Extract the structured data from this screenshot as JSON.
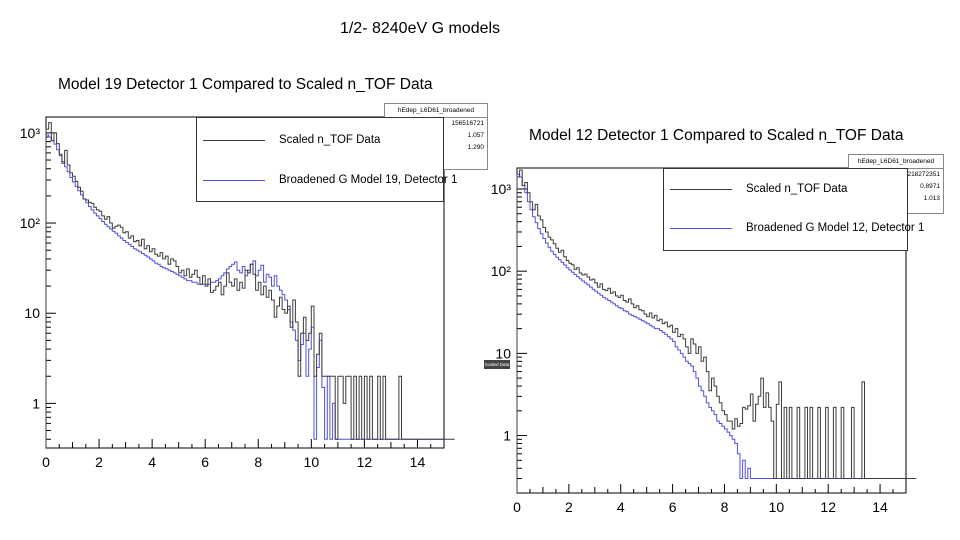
{
  "slide_title": "1/2- 8240eV G models",
  "side_tag": "Scaled Data",
  "chart_data": [
    {
      "type": "line",
      "subtype": "step-histogram",
      "title": "Model 19 Detector 1 Compared to Scaled n_TOF Data",
      "xlabel": "",
      "ylabel": "",
      "xlim": [
        0,
        15
      ],
      "yscale": "log",
      "ylim": [
        0.32,
        1500
      ],
      "x_ticks": [
        "0",
        "2",
        "4",
        "6",
        "8",
        "10",
        "12",
        "14"
      ],
      "y_ticks": [
        "1",
        "10",
        "10²",
        "10³"
      ],
      "stats": {
        "name": "hEdep_L6D61_broadened",
        "entries": "156516721",
        "mean": "1.057",
        "std_dev": "1.290"
      },
      "legend": [
        "Scaled n_TOF Data",
        "Broadened G Model 19, Detector 1"
      ],
      "colors": {
        "data": "#3c3c3c",
        "model": "#5050e0"
      },
      "series": [
        {
          "name": "Scaled n_TOF Data",
          "bin_width": 0.1,
          "values": [
            1100,
            1300,
            820,
            1000,
            760,
            580,
            460,
            640,
            440,
            360,
            330,
            290,
            250,
            225,
            185,
            180,
            170,
            165,
            150,
            140,
            135,
            120,
            110,
            118,
            100,
            88,
            92,
            95,
            90,
            78,
            80,
            68,
            72,
            62,
            64,
            56,
            66,
            52,
            56,
            48,
            52,
            45,
            43,
            47,
            40,
            43,
            35,
            40,
            38,
            33,
            28,
            30,
            26,
            31,
            25,
            27,
            30,
            25,
            21,
            26,
            20,
            24,
            17,
            18,
            20,
            22,
            16,
            20,
            28,
            22,
            20,
            24,
            18,
            22,
            19,
            30,
            28,
            35,
            27,
            18,
            22,
            16,
            20,
            15,
            18,
            14,
            9,
            12,
            15,
            11,
            10,
            12,
            7,
            14,
            8,
            2,
            6,
            9,
            5,
            6,
            12,
            2,
            3.5,
            6,
            2,
            2,
            2,
            2,
            2,
            0.4,
            2,
            2,
            1,
            2,
            2,
            0.4,
            2,
            0.4,
            2,
            0.4,
            2,
            0.4,
            2,
            0.4,
            0.4,
            2,
            0.4,
            2,
            0.4,
            0.4,
            0.4,
            0.4,
            0.4,
            2,
            0.4,
            0.4,
            0.4,
            0.4,
            0.4,
            0.4,
            0.4,
            0.4,
            0.4,
            0.4,
            0.4,
            0.4,
            0.4,
            0.4,
            0.4,
            0.4,
            0.4,
            0.4,
            0.4,
            0.4
          ]
        },
        {
          "name": "Broadened G Model 19, Detector 1",
          "bin_width": 0.1,
          "values": [
            950,
            900,
            820,
            750,
            650,
            560,
            480,
            420,
            370,
            320,
            285,
            255,
            228,
            205,
            185,
            168,
            152,
            140,
            129,
            120,
            112,
            104,
            97,
            91,
            86,
            81,
            77,
            72,
            68,
            64,
            61,
            58,
            55,
            52,
            50,
            48,
            46,
            44,
            42,
            40,
            38,
            36,
            35,
            33,
            32,
            31,
            30,
            29,
            28,
            27,
            26,
            25,
            24,
            23,
            23,
            22,
            22,
            21,
            21,
            21,
            21,
            21,
            22,
            22,
            23,
            24,
            26,
            28,
            31,
            33,
            35,
            37,
            30,
            28,
            33,
            26,
            30,
            35,
            38,
            26,
            30,
            34,
            22,
            27,
            25,
            20,
            26,
            20,
            18,
            16,
            14,
            11,
            8,
            6.5,
            5,
            3,
            4.5,
            6,
            2,
            4,
            7,
            0.4,
            2.5,
            5,
            1.5,
            0.4,
            2,
            0.4,
            1,
            0.4,
            0.4,
            0.4,
            0.4,
            0.4,
            0.4,
            0.4,
            0.4,
            0.4,
            0.4,
            0.4,
            0.4,
            0.4,
            0.4,
            0.4,
            0.4,
            0.4,
            0.4,
            0.4,
            0.4,
            0.4,
            0.4,
            0.4,
            0.4,
            0.4,
            0.4,
            0.4,
            0.4,
            0.4,
            0.4,
            0.4,
            0.4,
            0.4,
            0.4,
            0.4,
            0.4,
            0.4,
            0.4,
            0.4,
            0.4,
            0.4
          ]
        }
      ]
    },
    {
      "type": "line",
      "subtype": "step-histogram",
      "title": "Model 12 Detector 1 Compared to Scaled n_TOF Data",
      "xlabel": "",
      "ylabel": "",
      "xlim": [
        0,
        15
      ],
      "yscale": "log",
      "ylim": [
        0.2,
        1800
      ],
      "x_ticks": [
        "0",
        "2",
        "4",
        "6",
        "8",
        "10",
        "12",
        "14"
      ],
      "y_ticks": [
        "1",
        "10",
        "10²",
        "10³"
      ],
      "stats": {
        "name": "hEdep_L6D61_broadened",
        "entries": "218272351",
        "mean": "0.8971",
        "std_dev": "1.013"
      },
      "legend": [
        "Scaled n_TOF Data",
        "Broadened G Model 12, Detector 1"
      ],
      "colors": {
        "data": "#3c3c3c",
        "model": "#5050e0"
      },
      "series": [
        {
          "name": "Scaled n_TOF Data",
          "bin_width": 0.1,
          "values": [
            1400,
            1700,
            1100,
            1200,
            900,
            700,
            560,
            650,
            470,
            420,
            340,
            300,
            260,
            240,
            215,
            190,
            170,
            180,
            150,
            135,
            125,
            120,
            105,
            110,
            95,
            90,
            92,
            85,
            78,
            80,
            72,
            64,
            70,
            60,
            58,
            62,
            54,
            56,
            50,
            48,
            51,
            44,
            42,
            46,
            40,
            36,
            38,
            34,
            33,
            30,
            28,
            31,
            27,
            29,
            25,
            26,
            23,
            24,
            21,
            22,
            18,
            20,
            16,
            17,
            15,
            12,
            10,
            15,
            13,
            10,
            12,
            8,
            9,
            6,
            3.5,
            5,
            4,
            3,
            2.5,
            2,
            1.8,
            1.5,
            1.5,
            1.2,
            1.6,
            1.3,
            1.4,
            2.2,
            2.1,
            2.3,
            3.2,
            1.5,
            2.4,
            3,
            5,
            2.2,
            3.3,
            2.2,
            1.5,
            0.3,
            2.4,
            4.5,
            0.3,
            2.2,
            0.3,
            2.2,
            0.3,
            0.3,
            2.2,
            0.3,
            0.3,
            2.2,
            0.3,
            2.2,
            0.3,
            0.3,
            2.2,
            0.3,
            0.3,
            2.2,
            0.3,
            0.3,
            2.2,
            0.3,
            0.3,
            2.2,
            0.3,
            0.3,
            0.3,
            2.2,
            0.3,
            0.3,
            0.3,
            4.5,
            0.3,
            0.3,
            0.3,
            0.3,
            0.3,
            0.3,
            0.3,
            0.3,
            0.3,
            0.3,
            0.3,
            0.3,
            0.3,
            0.3,
            0.3,
            0.3,
            0.3,
            0.3,
            0.3,
            0.3
          ]
        },
        {
          "name": "Broadened G Model 12, Detector 1",
          "bin_width": 0.1,
          "values": [
            1500,
            1400,
            1100,
            900,
            700,
            560,
            460,
            390,
            330,
            285,
            250,
            220,
            195,
            175,
            160,
            148,
            138,
            128,
            119,
            110,
            103,
            97,
            91,
            86,
            81,
            76,
            72,
            68,
            64,
            60,
            57,
            54,
            51,
            48,
            46,
            44,
            42,
            40,
            38,
            36,
            35,
            33,
            32,
            30,
            29,
            28,
            27,
            26,
            25,
            24,
            23,
            22,
            21,
            20,
            20,
            19,
            18,
            17,
            16,
            15,
            14,
            12,
            11,
            10,
            9,
            8,
            7.5,
            7,
            6,
            5,
            4,
            3.5,
            3,
            2.5,
            2.2,
            2,
            1.8,
            1.5,
            1.4,
            1.3,
            1.2,
            1.1,
            1,
            0.9,
            0.8,
            0.6,
            0.3,
            0.5,
            0.3,
            0.4,
            0.3,
            0.3,
            0.3,
            0.3,
            0.3,
            0.3,
            0.3,
            0.3,
            0.3,
            0.3,
            0.3,
            0.3,
            0.3,
            0.3,
            0.3,
            0.3,
            0.3,
            0.3,
            0.3,
            0.3,
            0.3,
            0.3,
            0.3,
            0.3,
            0.3,
            0.3,
            0.3,
            0.3,
            0.3,
            0.3,
            0.3,
            0.3,
            0.3,
            0.3,
            0.3,
            0.3,
            0.3,
            0.3,
            0.3,
            0.3,
            0.3,
            0.3,
            0.3,
            0.3,
            0.3,
            0.3,
            0.3,
            0.3,
            0.3,
            0.3,
            0.3,
            0.3,
            0.3,
            0.3,
            0.3,
            0.3,
            0.3,
            0.3,
            0.3,
            0.3
          ]
        }
      ]
    }
  ]
}
